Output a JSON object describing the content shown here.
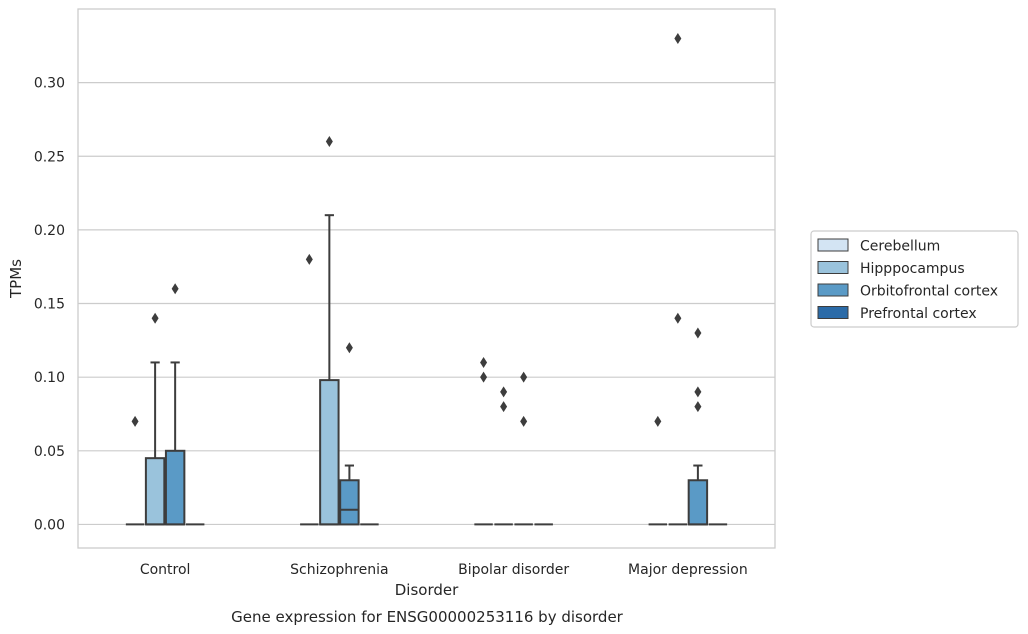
{
  "chart_data": {
    "type": "box",
    "xlabel": "Disorder",
    "ylabel": "TPMs",
    "caption": "Gene expression for ENSG00000253116 by disorder",
    "ylim": [
      -0.016,
      0.35
    ],
    "yticks": [
      0.0,
      0.05,
      0.1,
      0.15,
      0.2,
      0.25,
      0.3
    ],
    "ytick_labels": [
      "0.00",
      "0.05",
      "0.10",
      "0.15",
      "0.20",
      "0.25",
      "0.30"
    ],
    "grid": "horizontal",
    "legend_position": "right",
    "categories": [
      "Control",
      "Schizophrenia",
      "Bipolar disorder",
      "Major depression"
    ],
    "series": [
      {
        "name": "Cerebellum",
        "color": "#d3e4f3",
        "boxes": [
          {
            "min": 0,
            "q1": 0,
            "median": 0,
            "q3": 0,
            "max": 0,
            "outliers": [
              0.07
            ]
          },
          {
            "min": 0,
            "q1": 0,
            "median": 0,
            "q3": 0,
            "max": 0,
            "outliers": [
              0.18
            ]
          },
          {
            "min": 0,
            "q1": 0,
            "median": 0,
            "q3": 0,
            "max": 0,
            "outliers": [
              0.1,
              0.11
            ]
          },
          {
            "min": 0,
            "q1": 0,
            "median": 0,
            "q3": 0,
            "max": 0,
            "outliers": [
              0.07
            ]
          }
        ]
      },
      {
        "name": "Hipppocampus",
        "color": "#9ac3dc",
        "boxes": [
          {
            "min": 0,
            "q1": 0,
            "median": 0,
            "q3": 0.045,
            "max": 0.11,
            "outliers": [
              0.14
            ]
          },
          {
            "min": 0,
            "q1": 0,
            "median": 0,
            "q3": 0.098,
            "max": 0.21,
            "outliers": [
              0.26
            ]
          },
          {
            "min": 0,
            "q1": 0,
            "median": 0,
            "q3": 0,
            "max": 0,
            "outliers": [
              0.08,
              0.09
            ]
          },
          {
            "min": 0,
            "q1": 0,
            "median": 0,
            "q3": 0,
            "max": 0,
            "outliers": [
              0.14,
              0.33
            ]
          }
        ]
      },
      {
        "name": "Orbitofrontal cortex",
        "color": "#5a9ac6",
        "boxes": [
          {
            "min": 0,
            "q1": 0,
            "median": 0,
            "q3": 0.05,
            "max": 0.11,
            "outliers": [
              0.16
            ]
          },
          {
            "min": 0,
            "q1": 0,
            "median": 0.01,
            "q3": 0.03,
            "max": 0.04,
            "outliers": [
              0.12
            ]
          },
          {
            "min": 0,
            "q1": 0,
            "median": 0,
            "q3": 0,
            "max": 0,
            "outliers": [
              0.07,
              0.1
            ]
          },
          {
            "min": 0,
            "q1": 0,
            "median": 0,
            "q3": 0.03,
            "max": 0.04,
            "outliers": [
              0.08,
              0.09,
              0.13
            ]
          }
        ]
      },
      {
        "name": "Prefrontal cortex",
        "color": "#2b6ba8",
        "boxes": [
          {
            "min": 0,
            "q1": 0,
            "median": 0,
            "q3": 0,
            "max": 0,
            "outliers": []
          },
          {
            "min": 0,
            "q1": 0,
            "median": 0,
            "q3": 0,
            "max": 0,
            "outliers": []
          },
          {
            "min": 0,
            "q1": 0,
            "median": 0,
            "q3": 0,
            "max": 0,
            "outliers": []
          },
          {
            "min": 0,
            "q1": 0,
            "median": 0,
            "q3": 0,
            "max": 0,
            "outliers": []
          }
        ]
      }
    ],
    "colors": {
      "grid": "#cccccc",
      "frame": "#cccccc",
      "box_edge": "#3d3d3d",
      "outlier": "#3d3d3d"
    }
  }
}
